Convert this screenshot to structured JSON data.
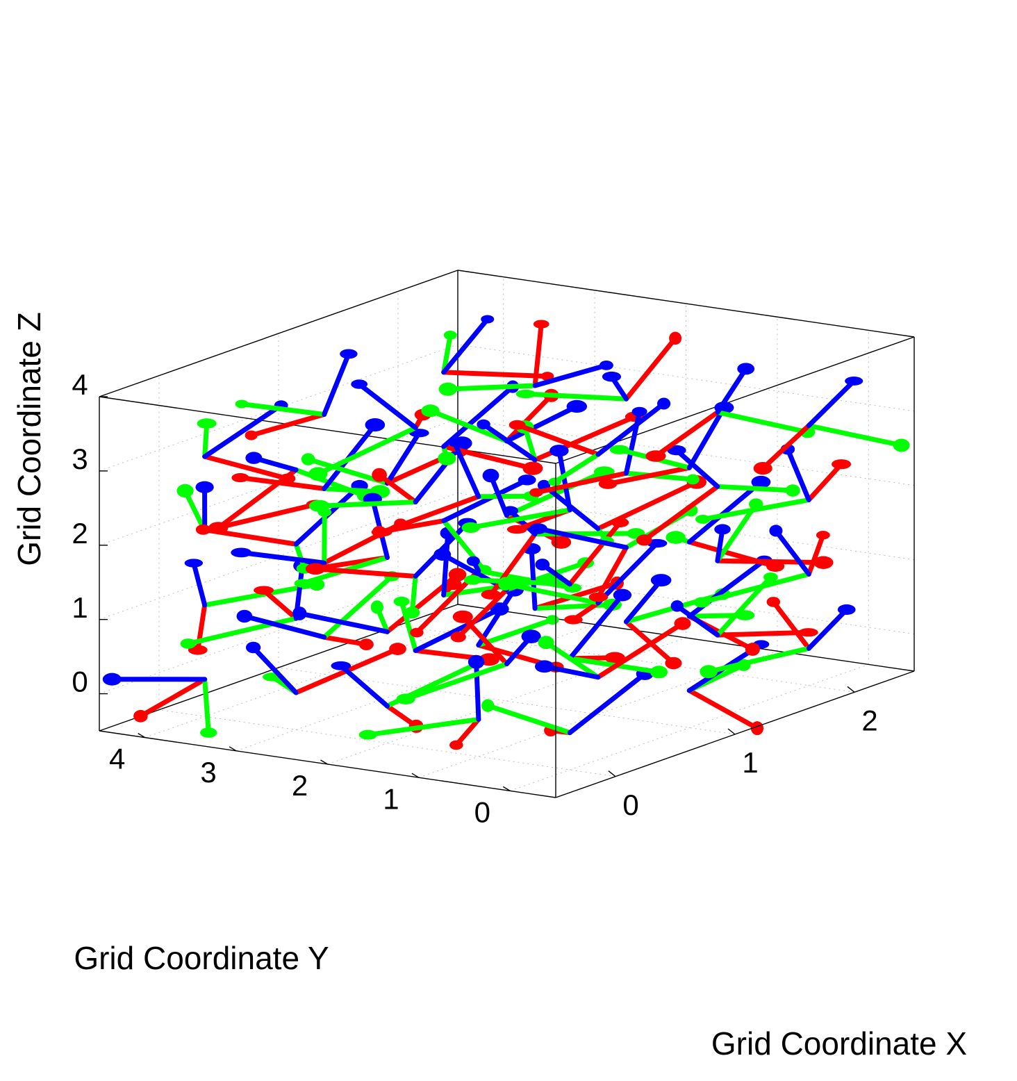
{
  "chart_data": {
    "type": "scatter3d",
    "title": "",
    "xlabel": "Grid Coordinate X",
    "ylabel": "Grid Coordinate Y",
    "zlabel": "Grid Coordinate Z",
    "xticks": [
      "0",
      "1",
      "2"
    ],
    "yticks": [
      "0",
      "1",
      "2",
      "3",
      "4"
    ],
    "zticks": [
      "0",
      "1",
      "2",
      "3",
      "4"
    ],
    "xlim": [
      -0.5,
      2.5
    ],
    "ylim": [
      -0.5,
      4.5
    ],
    "zlim": [
      -0.5,
      4.0
    ],
    "grid": true,
    "box": true,
    "axis_colors": {
      "x": "#ff0000",
      "y": "#00ff00",
      "z": "#0000ff"
    },
    "frame_axis_length": 0.75,
    "series": [
      {
        "description": "local coordinate frames at grid nodes (x-axis red, y-axis green, z-axis blue)",
        "grid_x": [
          0,
          1,
          2
        ],
        "grid_y": [
          0,
          1,
          2,
          3,
          4
        ],
        "grid_z": [
          0,
          1,
          2,
          3
        ]
      }
    ]
  }
}
